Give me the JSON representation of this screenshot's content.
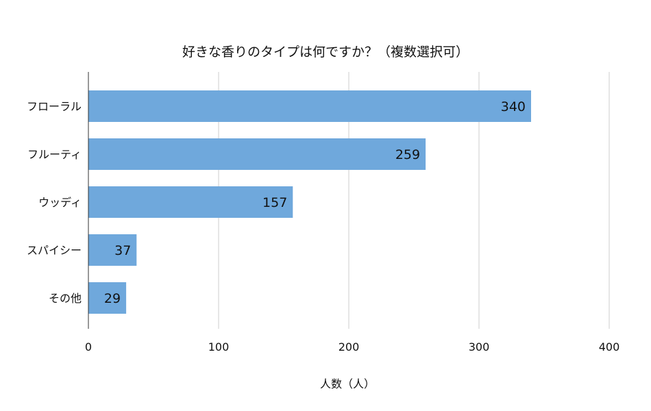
{
  "chart_data": {
    "type": "bar",
    "orientation": "horizontal",
    "title": "好きな香りのタイプは何ですか？（複数選択可）",
    "xlabel": "人数（人）",
    "ylabel": "",
    "categories": [
      "フローラル",
      "フルーティ",
      "ウッディ",
      "スパイシー",
      "その他"
    ],
    "values": [
      340,
      259,
      157,
      37,
      29
    ],
    "xlim": [
      0,
      400
    ],
    "xticks": [
      "0",
      "100",
      "200",
      "300",
      "400"
    ],
    "grid": true,
    "legend": "none",
    "bar_color": "#6fa8dc",
    "data_labels": true
  }
}
